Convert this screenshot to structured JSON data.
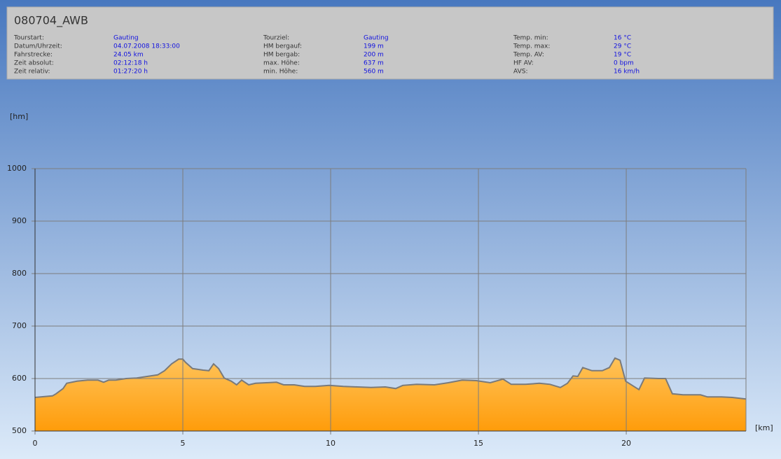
{
  "header": {
    "title": "080704_AWB",
    "columns": [
      [
        [
          "Tourstart:",
          "Gauting"
        ],
        [
          "Datum/Uhrzeit:",
          "04.07.2008 18:33:00"
        ],
        [
          "Fahrstrecke:",
          "24.05 km"
        ],
        [
          "Zeit absolut:",
          "02:12:18 h"
        ],
        [
          "Zeit relativ:",
          "01:27:20 h"
        ]
      ],
      [
        [
          "Tourziel:",
          "Gauting"
        ],
        [
          "HM bergauf:",
          "199 m"
        ],
        [
          "HM bergab:",
          "200 m"
        ],
        [
          "max. Höhe:",
          "637 m"
        ],
        [
          "min. Höhe:",
          "560 m"
        ]
      ],
      [
        [
          "Temp. min:",
          "16 °C"
        ],
        [
          "Temp. max:",
          "29 °C"
        ],
        [
          "Temp. AV:",
          "19 °C"
        ],
        [
          "HF AV:",
          "0 bpm"
        ],
        [
          "AVS:",
          "16 km/h"
        ]
      ]
    ]
  },
  "chart_data": {
    "type": "area",
    "y_label": "[hm]",
    "x_label": "[km]",
    "x": [
      0,
      0.59,
      0.71,
      0.95,
      1.07,
      1.42,
      1.78,
      2.13,
      2.32,
      2.49,
      2.73,
      3.08,
      3.44,
      3.79,
      4.15,
      4.38,
      4.62,
      4.86,
      5.0,
      5.09,
      5.33,
      5.69,
      5.88,
      6.04,
      6.21,
      6.4,
      6.64,
      6.82,
      6.99,
      7.23,
      7.46,
      7.82,
      8.17,
      8.41,
      8.77,
      9.12,
      9.48,
      9.95,
      10.43,
      10.9,
      11.37,
      11.85,
      12.2,
      12.44,
      12.91,
      13.51,
      13.98,
      14.45,
      14.93,
      15.4,
      15.83,
      16.11,
      16.59,
      17.06,
      17.42,
      17.77,
      18.01,
      18.2,
      18.36,
      18.53,
      18.84,
      19.19,
      19.43,
      19.62,
      19.79,
      19.98,
      20.26,
      20.43,
      20.62,
      21.09,
      21.33,
      21.56,
      21.92,
      22.51,
      22.75,
      23.22,
      23.58,
      24.05
    ],
    "values": [
      564,
      567,
      571,
      581,
      591,
      595,
      597,
      597,
      593,
      597,
      597,
      600,
      601,
      604,
      607,
      615,
      628,
      637,
      637,
      631,
      619,
      616,
      615,
      628,
      619,
      601,
      595,
      588,
      597,
      588,
      591,
      592,
      593,
      588,
      588,
      585,
      585,
      587,
      585,
      584,
      583,
      584,
      581,
      587,
      589,
      588,
      592,
      597,
      596,
      592,
      599,
      589,
      589,
      591,
      589,
      583,
      591,
      605,
      604,
      621,
      615,
      615,
      621,
      639,
      635,
      595,
      585,
      579,
      601,
      600,
      600,
      571,
      569,
      569,
      565,
      565,
      564,
      561
    ],
    "color": "#ff9c0a",
    "line_color": "#7a7a7a",
    "xlim": [
      0,
      24.05
    ],
    "ylim": [
      500,
      1000
    ],
    "xticks": [
      0,
      5,
      10,
      15,
      20
    ],
    "yticks": [
      500,
      600,
      700,
      800,
      900,
      1000
    ],
    "grid": true
  }
}
